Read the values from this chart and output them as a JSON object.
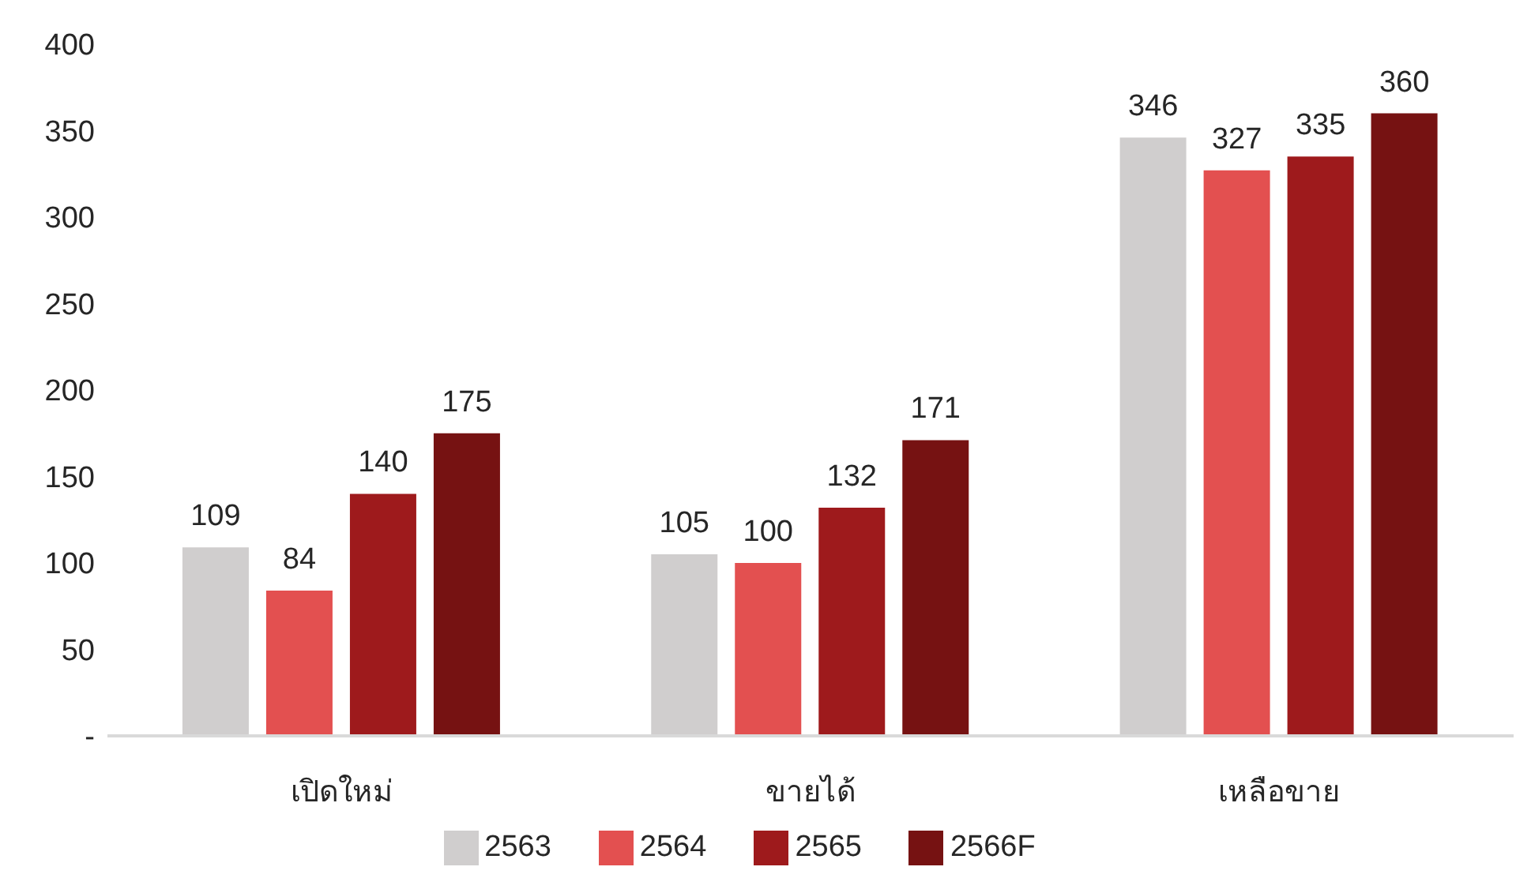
{
  "chart_data": {
    "type": "bar",
    "categories": [
      "เปิดใหม่",
      "ขายได้",
      "เหลือขาย"
    ],
    "series": [
      {
        "name": "2563",
        "color": "#d0cece",
        "values": [
          109,
          105,
          346
        ]
      },
      {
        "name": "2564",
        "color": "#e35050",
        "values": [
          84,
          100,
          327
        ]
      },
      {
        "name": "2565",
        "color": "#9e1a1c",
        "values": [
          140,
          132,
          335
        ]
      },
      {
        "name": "2566F",
        "color": "#761212",
        "values": [
          175,
          171,
          360
        ]
      }
    ],
    "ylim": [
      0,
      400
    ],
    "yticks": [
      {
        "value": 0,
        "label": "-"
      },
      50,
      100,
      150,
      200,
      250,
      300,
      350,
      400
    ],
    "data_labels": true,
    "grid": false,
    "legend": "bottom"
  }
}
